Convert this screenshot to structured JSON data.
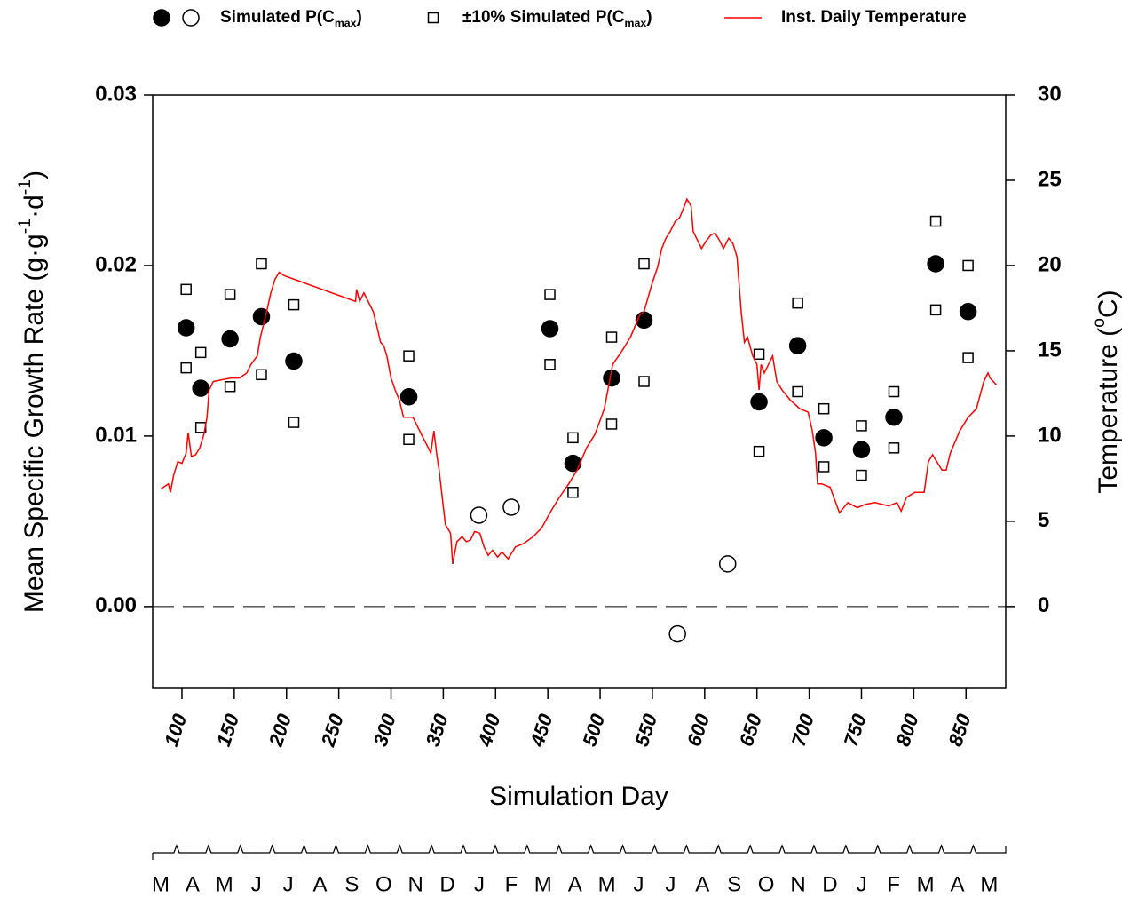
{
  "chart_data": {
    "type": "scatter",
    "ylabel": [
      "Mean Specific Growth Rate (g·g",
      {
        "sup": "-1"
      },
      "·d",
      {
        "sup": "-1"
      },
      ")"
    ],
    "y2label": [
      "Temperature (",
      {
        "sup": "o"
      },
      "C)"
    ],
    "xlabel": "Simulation Day",
    "xlim": [
      72,
      888
    ],
    "xticks": [
      100,
      150,
      200,
      250,
      300,
      350,
      400,
      450,
      500,
      550,
      600,
      650,
      700,
      750,
      800,
      850
    ],
    "ylim": [
      -0.0048,
      0.03
    ],
    "yticks": [
      {
        "value": 0,
        "label": "0.00"
      },
      0.01,
      0.02,
      0.03
    ],
    "y2lim": [
      -4.8,
      30
    ],
    "y2ticks": [
      0,
      5,
      10,
      15,
      20,
      25,
      30
    ],
    "zero_line": "dashed",
    "grid": false,
    "legend": "top",
    "series": [
      {
        "name": [
          "Simulated P(C",
          {
            "sub": "max"
          },
          ")"
        ],
        "marker": "circle",
        "filled": true,
        "color": "#000000",
        "x": [
          104,
          118,
          146,
          176,
          207,
          317,
          452,
          474,
          511,
          542,
          652,
          689,
          714,
          750,
          781,
          821,
          852
        ],
        "values": [
          0.01635,
          0.0128,
          0.0157,
          0.017,
          0.0144,
          0.0123,
          0.0163,
          0.0084,
          0.0134,
          0.0168,
          0.012,
          0.0153,
          0.0099,
          0.0092,
          0.0111,
          0.0201,
          0.0173
        ]
      },
      {
        "marker": "circle",
        "filled": false,
        "color": "#000000",
        "x": [
          384,
          415,
          574,
          622
        ],
        "values": [
          0.00536,
          0.00583,
          -0.0016,
          0.0025
        ]
      },
      {
        "name": [
          "±10% Simulated P(C",
          {
            "sub": "max"
          },
          ")"
        ],
        "marker": "square",
        "filled": false,
        "color": "#000000",
        "x": [
          104,
          118,
          146,
          176,
          207,
          317,
          452,
          474,
          511,
          542,
          652,
          689,
          714,
          750,
          781,
          821,
          852
        ],
        "values": [
          0.0186,
          0.0149,
          0.0183,
          0.0201,
          0.0177,
          0.0147,
          0.0183,
          0.0099,
          0.0158,
          0.0201,
          0.0148,
          0.0178,
          0.0116,
          0.0106,
          0.0126,
          0.0226,
          0.02
        ]
      },
      {
        "marker": "square",
        "filled": false,
        "color": "#000000",
        "x": [
          104,
          118,
          146,
          176,
          207,
          317,
          452,
          474,
          511,
          542,
          652,
          689,
          714,
          750,
          781,
          821,
          852
        ],
        "values": [
          0.014,
          0.0105,
          0.0129,
          0.0136,
          0.0108,
          0.0098,
          0.0142,
          0.0067,
          0.0107,
          0.0132,
          0.0091,
          0.0126,
          0.0082,
          0.0077,
          0.0093,
          0.0174,
          0.0146
        ]
      },
      {
        "name": [
          "Inst. Daily Temperature"
        ],
        "marker": "line",
        "color": "#ff0000",
        "axis": "y2",
        "x": [
          80,
          87,
          89,
          92,
          96,
          100,
          104,
          106,
          109,
          113,
          117,
          121,
          124,
          126,
          130,
          138,
          147,
          155,
          162,
          166,
          172,
          175,
          177,
          181,
          185,
          189,
          193,
          198,
          266,
          267,
          270,
          274,
          283,
          287,
          290,
          293,
          296,
          300,
          304,
          308,
          312,
          317,
          321,
          325,
          329,
          334,
          338,
          341,
          344,
          346,
          349,
          352,
          357,
          359,
          363,
          368,
          372,
          376,
          380,
          385,
          389,
          393,
          397,
          402,
          406,
          412,
          419,
          427,
          436,
          444,
          453,
          461,
          470,
          478,
          487,
          495,
          504,
          512,
          521,
          529,
          538,
          542,
          550,
          555,
          559,
          563,
          567,
          572,
          576,
          580,
          583,
          587,
          589,
          593,
          597,
          601,
          606,
          610,
          614,
          618,
          623,
          627,
          631,
          635,
          638,
          641,
          646,
          650,
          652,
          654,
          657,
          661,
          665,
          669,
          674,
          682,
          691,
          699,
          703,
          706,
          708,
          712,
          720,
          729,
          737,
          746,
          754,
          763,
          776,
          784,
          788,
          793,
          801,
          810,
          814,
          818,
          827,
          831,
          835,
          844,
          852,
          860,
          867,
          871,
          873,
          879
        ],
        "values": [
          6.9,
          7.2,
          6.7,
          7.7,
          8.5,
          8.4,
          9.0,
          10.2,
          8.8,
          8.9,
          9.3,
          10.1,
          11.1,
          12.7,
          13.2,
          13.3,
          13.4,
          13.4,
          13.7,
          14.2,
          14.7,
          15.8,
          16.3,
          17.3,
          18.4,
          19.2,
          19.6,
          19.4,
          17.9,
          18.6,
          17.9,
          18.4,
          17.3,
          16.3,
          15.5,
          15.3,
          14.7,
          13.4,
          12.7,
          12.1,
          11.1,
          11.1,
          11.1,
          10.6,
          10.1,
          9.5,
          9.0,
          10.3,
          8.8,
          8.0,
          6.4,
          4.8,
          4.3,
          2.5,
          3.8,
          4.1,
          3.8,
          3.9,
          4.4,
          4.3,
          3.5,
          3.0,
          3.3,
          2.9,
          3.2,
          2.8,
          3.5,
          3.7,
          4.1,
          4.6,
          5.6,
          6.4,
          7.2,
          8.0,
          9.3,
          10.1,
          11.6,
          14.2,
          15.0,
          15.8,
          17.1,
          17.3,
          19.0,
          19.9,
          21.0,
          21.6,
          22.0,
          22.6,
          22.8,
          23.4,
          23.9,
          23.5,
          22.0,
          21.5,
          21.0,
          21.4,
          21.8,
          21.9,
          21.5,
          21.0,
          21.6,
          21.3,
          20.5,
          17.3,
          15.5,
          15.8,
          14.7,
          14.2,
          12.7,
          14.2,
          13.7,
          14.2,
          14.7,
          13.2,
          12.7,
          12.1,
          11.6,
          11.4,
          10.3,
          9.0,
          7.2,
          7.2,
          7.0,
          5.5,
          6.1,
          5.8,
          6.0,
          6.1,
          5.9,
          6.1,
          5.6,
          6.4,
          6.7,
          6.7,
          8.5,
          8.9,
          8.0,
          8.0,
          9.0,
          10.3,
          11.1,
          11.6,
          13.2,
          13.7,
          13.4,
          13.0
        ]
      }
    ],
    "months": [
      "M",
      "A",
      "M",
      "J",
      "J",
      "A",
      "S",
      "O",
      "N",
      "D",
      "J",
      "F",
      "M",
      "A",
      "M",
      "J",
      "J",
      "A",
      "S",
      "O",
      "N",
      "D",
      "J",
      "F",
      "M",
      "A",
      "M"
    ]
  }
}
